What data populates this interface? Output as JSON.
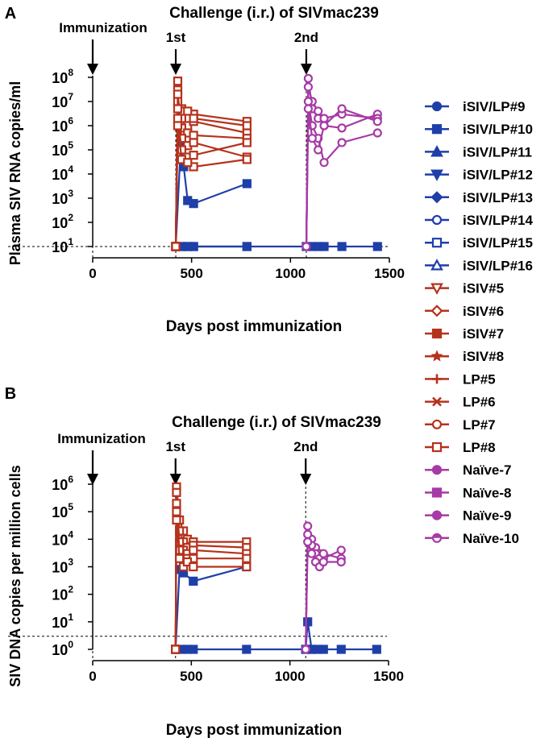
{
  "legend": [
    {
      "name": "iSIV/LP#9",
      "color": "#1f3fa8",
      "marker": "circle-filled"
    },
    {
      "name": "iSIV/LP#10",
      "color": "#1f3fa8",
      "marker": "square-filled"
    },
    {
      "name": "iSIV/LP#11",
      "color": "#1f3fa8",
      "marker": "triangle-up-filled"
    },
    {
      "name": "iSIV/LP#12",
      "color": "#1f3fa8",
      "marker": "triangle-down-filled"
    },
    {
      "name": "iSIV/LP#13",
      "color": "#1f3fa8",
      "marker": "diamond-filled"
    },
    {
      "name": "iSIV/LP#14",
      "color": "#1f3fa8",
      "marker": "circle-open"
    },
    {
      "name": "iSIV/LP#15",
      "color": "#1f3fa8",
      "marker": "square-open"
    },
    {
      "name": "iSIV/LP#16",
      "color": "#1f3fa8",
      "marker": "triangle-up-open"
    },
    {
      "name": "iSIV#5",
      "color": "#b5321c",
      "marker": "triangle-down-open"
    },
    {
      "name": "iSIV#6",
      "color": "#b5321c",
      "marker": "diamond-open"
    },
    {
      "name": "iSIV#7",
      "color": "#b5321c",
      "marker": "square-filled"
    },
    {
      "name": "iSIV#8",
      "color": "#b5321c",
      "marker": "star"
    },
    {
      "name": "LP#5",
      "color": "#b5321c",
      "marker": "plus"
    },
    {
      "name": "LP#6",
      "color": "#b5321c",
      "marker": "cross"
    },
    {
      "name": "LP#7",
      "color": "#b5321c",
      "marker": "circle-open"
    },
    {
      "name": "LP#8",
      "color": "#b5321c",
      "marker": "square-open"
    },
    {
      "name": "Naïve-7",
      "color": "#a63aa6",
      "marker": "circle-filled"
    },
    {
      "name": "Naïve-8",
      "color": "#a63aa6",
      "marker": "square-filled"
    },
    {
      "name": "Naïve-9",
      "color": "#a63aa6",
      "marker": "circle-filled"
    },
    {
      "name": "Naïve-10",
      "color": "#a63aa6",
      "marker": "half-circle"
    }
  ],
  "colors": {
    "blue": "#1f3fa8",
    "red": "#b5321c",
    "purple": "#a63aa6"
  },
  "chart_data": [
    {
      "panel_label": "A",
      "type": "line",
      "title": "Challenge (i.r.) of SIVmac239",
      "xlabel": "Days post immunization",
      "ylabel": "Plasma SIV RNA copies/ml",
      "xlim": [
        0,
        1500
      ],
      "ylim_log10": [
        1,
        8
      ],
      "yscale": "log",
      "xticks": [
        0,
        500,
        1000,
        1500
      ],
      "yticks_exp": [
        1,
        2,
        3,
        4,
        5,
        6,
        7,
        8
      ],
      "y_tick_base": "10",
      "detection_limit": 10,
      "annotations": [
        {
          "text": "Immunization",
          "x": 0
        },
        {
          "text": "1st",
          "x": 420
        },
        {
          "text": "2nd",
          "x": 1080
        }
      ],
      "series": [
        {
          "group": "blue",
          "x": [
            420,
            450,
            480,
            510,
            780
          ],
          "y": [
            10,
            10,
            10,
            10,
            10
          ]
        },
        {
          "group": "blue",
          "x": [
            420,
            450,
            480,
            510,
            780,
            1080,
            1110,
            1140,
            1170,
            1260,
            1440
          ],
          "y": [
            10,
            10,
            10,
            10,
            10,
            10,
            10,
            10,
            10,
            10,
            10
          ]
        },
        {
          "group": "blue",
          "x": [
            420,
            445,
            460,
            480,
            510,
            780
          ],
          "y": [
            10,
            150000,
            20000,
            800,
            600,
            4000
          ]
        },
        {
          "group": "red",
          "x": [
            420,
            430,
            450,
            480,
            510,
            780
          ],
          "y": [
            10,
            70000000,
            5000000,
            2000000,
            3000000,
            1500000
          ]
        },
        {
          "group": "red",
          "x": [
            420,
            430,
            450,
            480,
            510,
            780
          ],
          "y": [
            10,
            30000000,
            2000000,
            1000000,
            1500000,
            500000
          ]
        },
        {
          "group": "red",
          "x": [
            420,
            430,
            450,
            480,
            510,
            780
          ],
          "y": [
            10,
            10000000,
            4000000,
            4000000,
            2000000,
            1000000
          ]
        },
        {
          "group": "red",
          "x": [
            420,
            430,
            450,
            480,
            510,
            780
          ],
          "y": [
            10,
            20000000,
            800000,
            500000,
            400000,
            300000
          ]
        },
        {
          "group": "red",
          "x": [
            420,
            430,
            450,
            480,
            510,
            780
          ],
          "y": [
            10,
            5000000,
            300000,
            150000,
            200000,
            50000
          ]
        },
        {
          "group": "red",
          "x": [
            420,
            430,
            450,
            480,
            510,
            780
          ],
          "y": [
            10,
            2000000,
            100000,
            50000,
            20000,
            40000
          ]
        },
        {
          "group": "red",
          "x": [
            420,
            430,
            450,
            480,
            510,
            780
          ],
          "y": [
            10,
            1000000,
            40000,
            30000,
            60000,
            200000
          ]
        },
        {
          "group": "purple",
          "x": [
            1080,
            1090,
            1110,
            1140,
            1170,
            1260,
            1440
          ],
          "y": [
            10,
            90000000,
            5000000,
            2000000,
            1000000,
            800000,
            3000000
          ]
        },
        {
          "group": "purple",
          "x": [
            1080,
            1090,
            1110,
            1140,
            1170,
            1260,
            1440
          ],
          "y": [
            10,
            40000000,
            10000000,
            4000000,
            2000000,
            3000000,
            2000000
          ]
        },
        {
          "group": "purple",
          "x": [
            1080,
            1090,
            1110,
            1140,
            1170,
            1260,
            1440
          ],
          "y": [
            10,
            10000000,
            1000000,
            300000,
            30000,
            200000,
            500000
          ]
        },
        {
          "group": "purple",
          "x": [
            1080,
            1090,
            1110,
            1140,
            1170,
            1260,
            1440
          ],
          "y": [
            10,
            5000000,
            300000,
            100000,
            1000000,
            5000000,
            1500000
          ]
        }
      ]
    },
    {
      "panel_label": "B",
      "type": "line",
      "title": "Challenge (i.r.) of SIVmac239",
      "xlabel": "Days post immunization",
      "ylabel": "SIV DNA copies per million cells",
      "xlim": [
        0,
        1500
      ],
      "ylim_log10": [
        0,
        6
      ],
      "yscale": "log",
      "xticks": [
        0,
        500,
        1000,
        1500
      ],
      "yticks_exp": [
        0,
        1,
        2,
        3,
        4,
        5,
        6
      ],
      "y_tick_base": "10",
      "detection_limit": 3,
      "annotations": [
        {
          "text": "Immunization",
          "x": 0
        },
        {
          "text": "1st",
          "x": 420
        },
        {
          "text": "2nd",
          "x": 1080
        }
      ],
      "series": [
        {
          "group": "blue",
          "x": [
            420,
            450,
            480,
            510,
            780,
            1080,
            1110,
            1140,
            1170,
            1260,
            1440
          ],
          "y": [
            1,
            1,
            1,
            1,
            1,
            1,
            1,
            1,
            1,
            1,
            1
          ]
        },
        {
          "group": "blue",
          "x": [
            420,
            440,
            460,
            510,
            780
          ],
          "y": [
            1,
            800,
            600,
            300,
            1000
          ]
        },
        {
          "group": "blue",
          "x": [
            1080,
            1090,
            1110
          ],
          "y": [
            1,
            10,
            1
          ]
        },
        {
          "group": "red",
          "x": [
            420,
            425,
            440,
            460,
            480,
            510,
            780
          ],
          "y": [
            1,
            800000,
            50000,
            20000,
            10000,
            8000,
            8000
          ]
        },
        {
          "group": "red",
          "x": [
            420,
            425,
            440,
            460,
            480,
            510,
            780
          ],
          "y": [
            1,
            500000,
            20000,
            8000,
            5000,
            6000,
            5000
          ]
        },
        {
          "group": "red",
          "x": [
            420,
            425,
            440,
            460,
            480,
            510,
            780
          ],
          "y": [
            1,
            200000,
            8000,
            4000,
            3000,
            4000,
            3000
          ]
        },
        {
          "group": "red",
          "x": [
            420,
            425,
            440,
            460,
            480,
            510,
            780
          ],
          "y": [
            1,
            100000,
            4000,
            2000,
            2000,
            2000,
            2000
          ]
        },
        {
          "group": "red",
          "x": [
            420,
            425,
            440,
            460,
            480,
            510,
            780
          ],
          "y": [
            1,
            50000,
            2000,
            1000,
            1500,
            1000,
            1000
          ]
        },
        {
          "group": "purple",
          "x": [
            1080,
            1090,
            1110,
            1130,
            1150,
            1170,
            1260
          ],
          "y": [
            1,
            30000,
            10000,
            5000,
            3000,
            2000,
            4000
          ]
        },
        {
          "group": "purple",
          "x": [
            1080,
            1090,
            1110,
            1130,
            1150,
            1170,
            1260
          ],
          "y": [
            1,
            15000,
            6000,
            3000,
            2000,
            3000,
            2000
          ]
        },
        {
          "group": "purple",
          "x": [
            1080,
            1090,
            1110,
            1130,
            1150,
            1170,
            1260
          ],
          "y": [
            1,
            8000,
            3000,
            1500,
            1000,
            1500,
            1500
          ]
        }
      ]
    }
  ]
}
